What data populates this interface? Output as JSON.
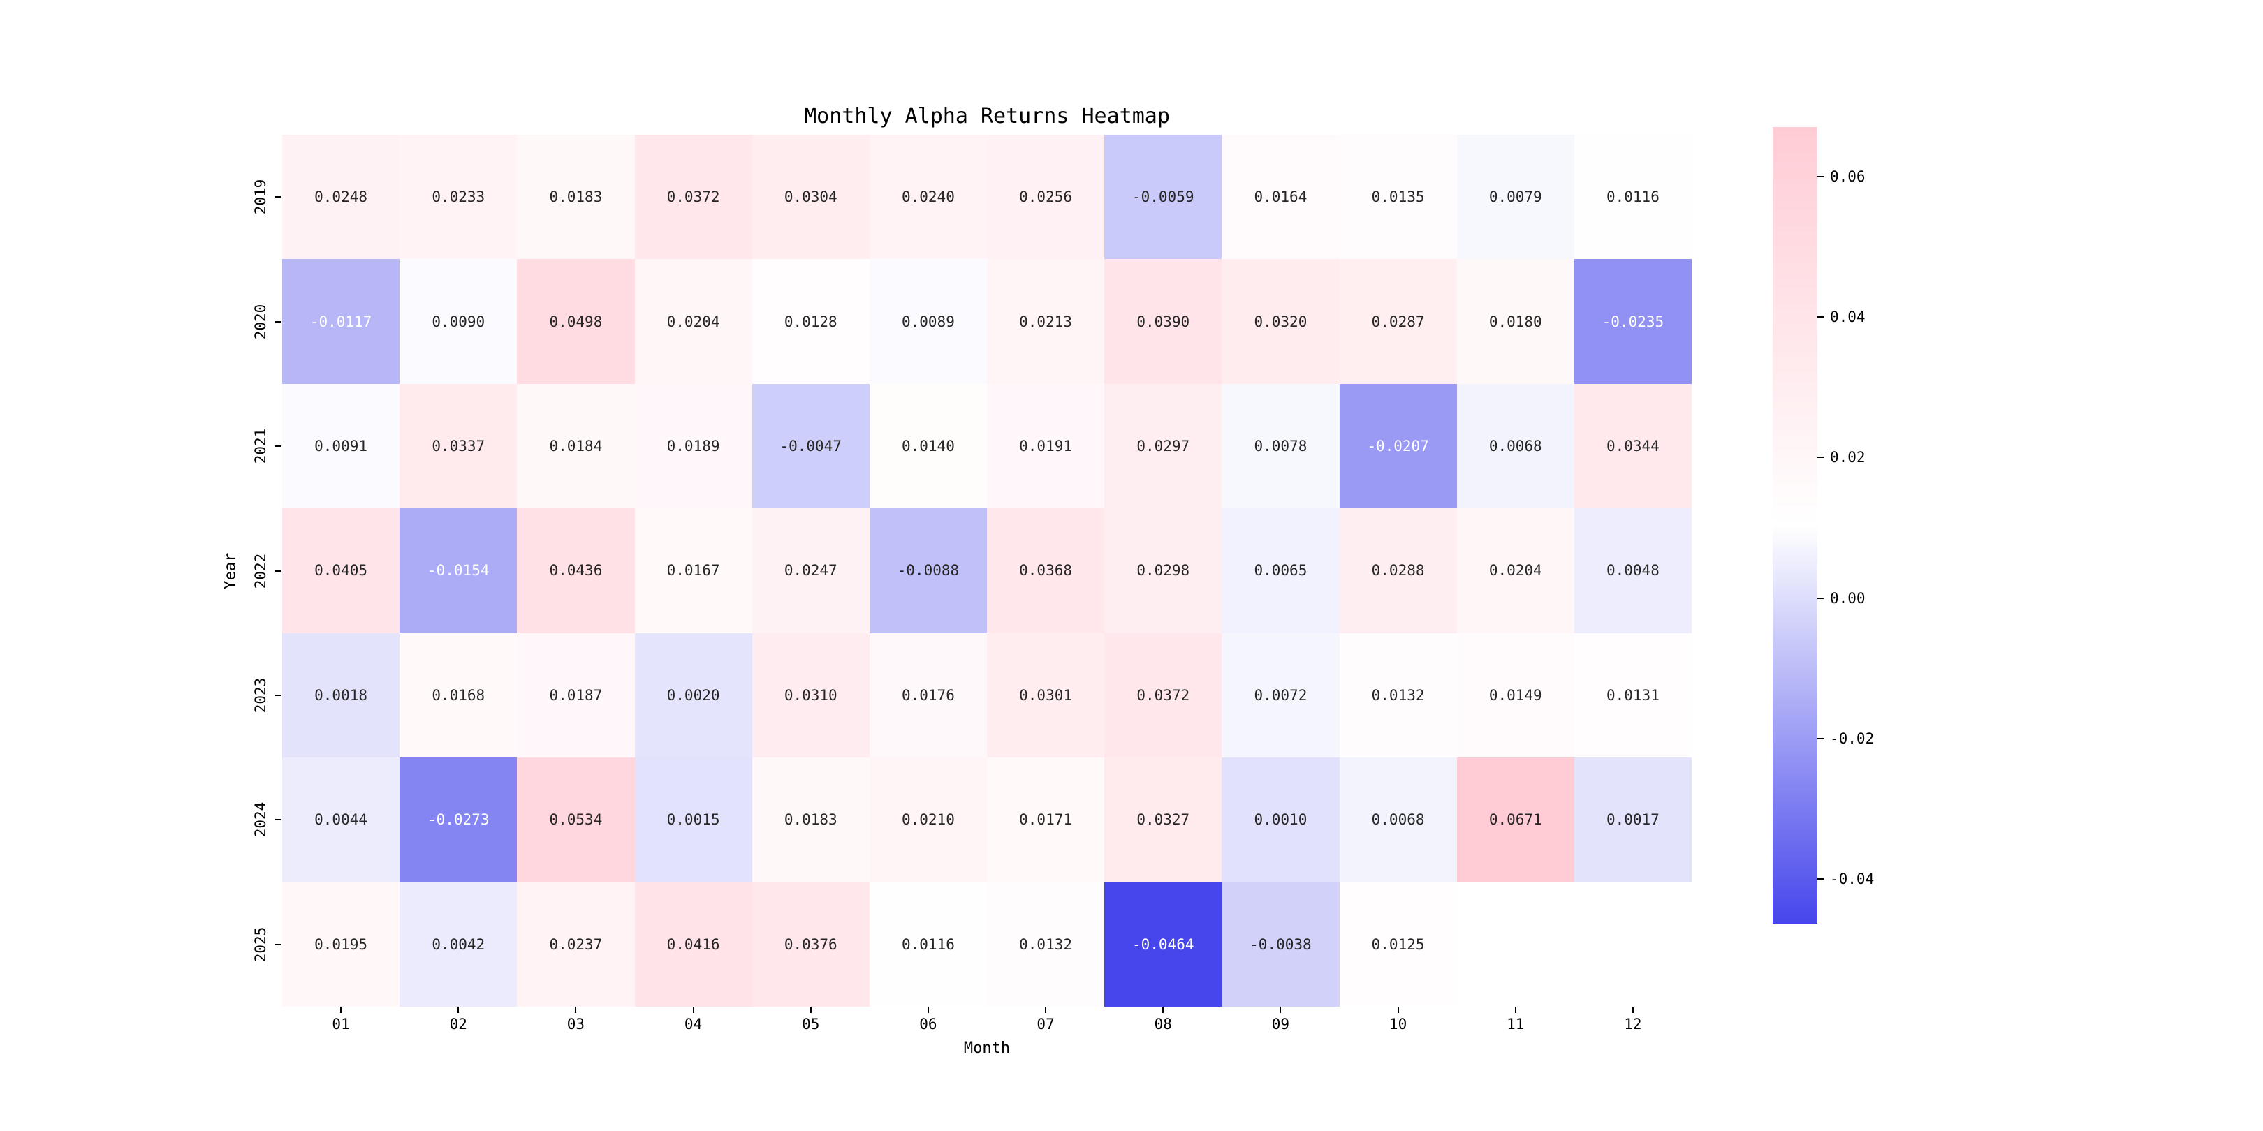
{
  "title": "Monthly Alpha Returns Heatmap",
  "chart_data": {
    "type": "heatmap",
    "title": "Monthly Alpha Returns Heatmap",
    "xlabel": "Month",
    "ylabel": "Year",
    "x_categories": [
      "01",
      "02",
      "03",
      "04",
      "05",
      "06",
      "07",
      "08",
      "09",
      "10",
      "11",
      "12"
    ],
    "y_categories": [
      "2019",
      "2020",
      "2021",
      "2022",
      "2023",
      "2024",
      "2025"
    ],
    "values": [
      [
        0.0248,
        0.0233,
        0.0183,
        0.0372,
        0.0304,
        0.024,
        0.0256,
        -0.0059,
        0.0164,
        0.0135,
        0.0079,
        0.0116
      ],
      [
        -0.0117,
        0.009,
        0.0498,
        0.0204,
        0.0128,
        0.0089,
        0.0213,
        0.039,
        0.032,
        0.0287,
        0.018,
        -0.0235
      ],
      [
        0.0091,
        0.0337,
        0.0184,
        0.0189,
        -0.0047,
        0.014,
        0.0191,
        0.0297,
        0.0078,
        -0.0207,
        0.0068,
        0.0344
      ],
      [
        0.0405,
        -0.0154,
        0.0436,
        0.0167,
        0.0247,
        -0.0088,
        0.0368,
        0.0298,
        0.0065,
        0.0288,
        0.0204,
        0.0048
      ],
      [
        0.0018,
        0.0168,
        0.0187,
        0.002,
        0.031,
        0.0176,
        0.0301,
        0.0372,
        0.0072,
        0.0132,
        0.0149,
        0.0131
      ],
      [
        0.0044,
        -0.0273,
        0.0534,
        0.0015,
        0.0183,
        0.021,
        0.0171,
        0.0327,
        0.001,
        0.0068,
        0.0671,
        0.0017
      ],
      [
        0.0195,
        0.0042,
        0.0237,
        0.0416,
        0.0376,
        0.0116,
        0.0132,
        -0.0464,
        -0.0038,
        0.0125,
        null,
        null
      ]
    ],
    "value_format_decimals": 4,
    "vmin": -0.0464,
    "vmax": 0.0671,
    "legend_position": "right-colorbar",
    "grid": false,
    "colormap": {
      "negative_end": "#4646EC",
      "center": "#FFFFFF",
      "positive_end": "#FFCCD5",
      "dark_text": "#262626",
      "light_text": "#FFFFFF",
      "empty_cell": "#FFFFFF"
    },
    "colorbar": {
      "ticks": [
        0.06,
        0.04,
        0.02,
        0.0,
        -0.02,
        -0.04
      ],
      "tick_format_decimals": 2
    }
  }
}
